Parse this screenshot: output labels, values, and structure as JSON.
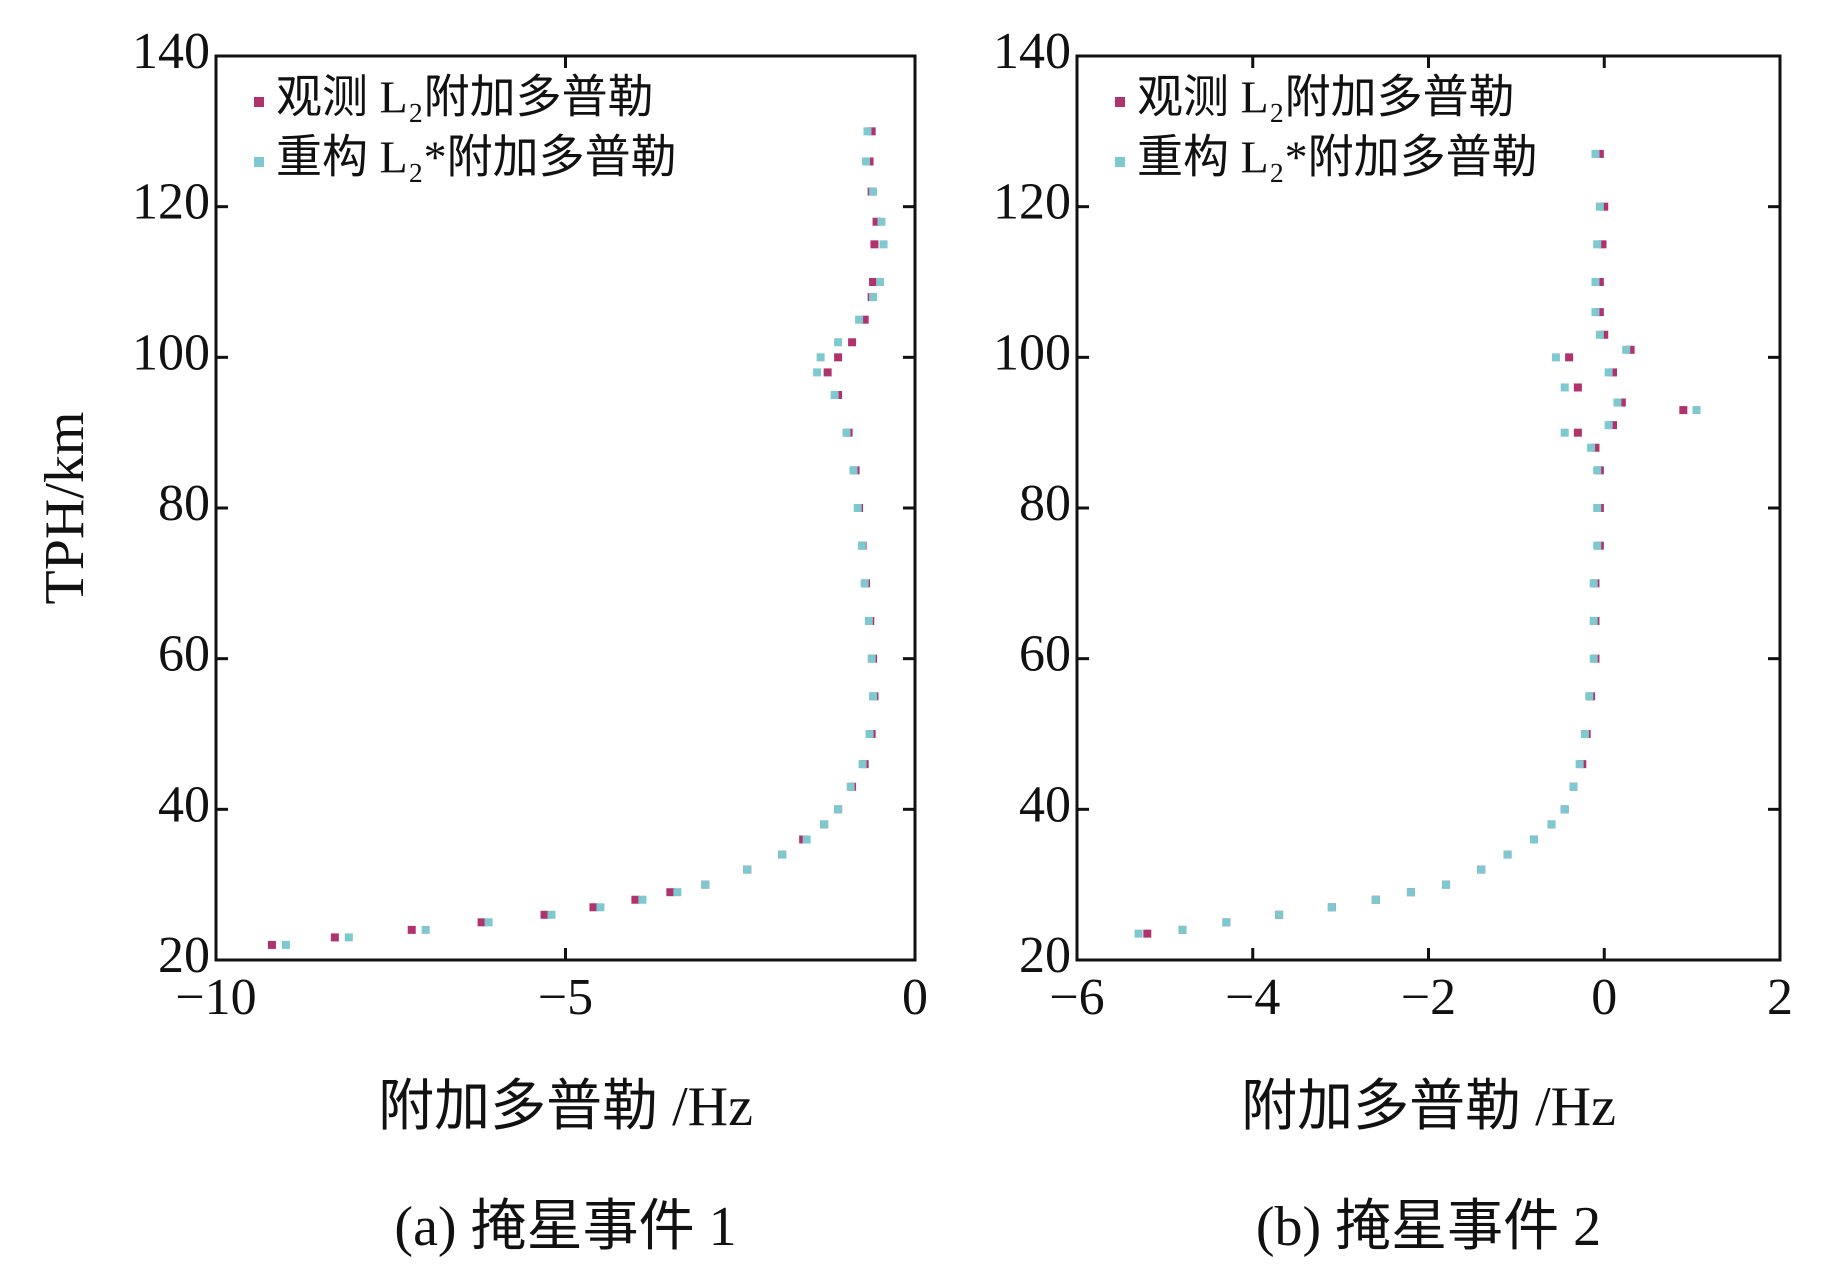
{
  "chart_data": [
    {
      "type": "scatter",
      "subtitle": "(a) 掩星事件 1",
      "xlabel": "附加多普勒 /Hz",
      "ylabel": "TPH/km",
      "xlim": [
        -10,
        0
      ],
      "ylim": [
        20,
        140
      ],
      "xticks": [
        {
          "value": -10,
          "label": "−10"
        },
        {
          "value": -5,
          "label": "−5"
        },
        0
      ],
      "yticks": [
        20,
        40,
        60,
        80,
        100,
        120,
        140
      ],
      "legend": "upper left",
      "series": [
        {
          "name": "观测 L₂附加多普勒",
          "color": "#b0336e",
          "x": [
            -9.2,
            -8.3,
            -7.2,
            -6.2,
            -5.3,
            -4.6,
            -4.0,
            -3.5,
            -3.0,
            -2.4,
            -1.9,
            -1.6,
            -1.3,
            -1.1,
            -0.9,
            -0.72,
            -0.62,
            -0.58,
            -0.6,
            -0.64,
            -0.7,
            -0.75,
            -0.8,
            -0.85,
            -0.95,
            -1.1,
            -1.25,
            -1.1,
            -0.9,
            -0.72,
            -0.62,
            -0.6,
            -0.58,
            -0.55,
            -0.62,
            -0.65,
            -0.62
          ],
          "values": [
            22,
            23,
            24,
            25,
            26,
            27,
            28,
            29,
            30,
            32,
            34,
            36,
            38,
            40,
            43,
            46,
            50,
            55,
            60,
            65,
            70,
            75,
            80,
            85,
            90,
            95,
            98,
            100,
            102,
            105,
            108,
            110,
            115,
            118,
            122,
            126,
            130
          ]
        },
        {
          "name": "重构 L₂*附加多普勒",
          "color": "#7ec8d0",
          "x": [
            -9.0,
            -8.1,
            -7.0,
            -6.1,
            -5.2,
            -4.5,
            -3.9,
            -3.4,
            -3.0,
            -2.4,
            -1.9,
            -1.55,
            -1.3,
            -1.1,
            -0.92,
            -0.75,
            -0.65,
            -0.6,
            -0.62,
            -0.66,
            -0.72,
            -0.76,
            -0.82,
            -0.88,
            -0.98,
            -1.15,
            -1.4,
            -1.35,
            -1.1,
            -0.8,
            -0.6,
            -0.5,
            -0.45,
            -0.48,
            -0.6,
            -0.7,
            -0.68
          ],
          "values": [
            22,
            23,
            24,
            25,
            26,
            27,
            28,
            29,
            30,
            32,
            34,
            36,
            38,
            40,
            43,
            46,
            50,
            55,
            60,
            65,
            70,
            75,
            80,
            85,
            90,
            95,
            98,
            100,
            102,
            105,
            108,
            110,
            115,
            118,
            122,
            126,
            130
          ]
        }
      ]
    },
    {
      "type": "scatter",
      "subtitle": "(b) 掩星事件 2",
      "xlabel": "附加多普勒 /Hz",
      "xlim": [
        -6,
        2
      ],
      "ylim": [
        20,
        140
      ],
      "xticks": [
        {
          "value": -6,
          "label": "−6"
        },
        {
          "value": -4,
          "label": "−4"
        },
        {
          "value": -2,
          "label": "−2"
        },
        0,
        2
      ],
      "yticks": [
        20,
        40,
        60,
        80,
        100,
        120,
        140
      ],
      "legend": "upper left",
      "series": [
        {
          "name": "观测 L₂附加多普勒",
          "color": "#b0336e",
          "x": [
            -5.2,
            -4.8,
            -4.3,
            -3.7,
            -3.1,
            -2.6,
            -2.2,
            -1.8,
            -1.4,
            -1.1,
            -0.8,
            -0.6,
            -0.45,
            -0.35,
            -0.25,
            -0.2,
            -0.15,
            -0.1,
            -0.1,
            -0.1,
            -0.05,
            -0.05,
            -0.05,
            -0.1,
            -0.3,
            0.1,
            0.9,
            0.2,
            -0.3,
            0.1,
            -0.4,
            0.3,
            0.0,
            -0.05,
            -0.05,
            -0.02,
            0.0,
            -0.05
          ],
          "values": [
            23.5,
            24,
            25,
            26,
            27,
            28,
            29,
            30,
            32,
            34,
            36,
            38,
            40,
            43,
            46,
            50,
            55,
            60,
            65,
            70,
            75,
            80,
            85,
            88,
            90,
            91,
            93,
            94,
            96,
            98,
            100,
            101,
            103,
            106,
            110,
            115,
            120,
            127
          ]
        },
        {
          "name": "重构 L₂*附加多普勒",
          "color": "#7ec8d0",
          "x": [
            -5.3,
            -4.8,
            -4.3,
            -3.7,
            -3.1,
            -2.6,
            -2.2,
            -1.8,
            -1.4,
            -1.1,
            -0.8,
            -0.6,
            -0.45,
            -0.35,
            -0.28,
            -0.22,
            -0.17,
            -0.12,
            -0.12,
            -0.12,
            -0.08,
            -0.08,
            -0.08,
            -0.15,
            -0.45,
            0.05,
            1.05,
            0.15,
            -0.45,
            0.05,
            -0.55,
            0.25,
            -0.05,
            -0.1,
            -0.1,
            -0.08,
            -0.05,
            -0.1
          ],
          "values": [
            23.5,
            24,
            25,
            26,
            27,
            28,
            29,
            30,
            32,
            34,
            36,
            38,
            40,
            43,
            46,
            50,
            55,
            60,
            65,
            70,
            75,
            80,
            85,
            88,
            90,
            91,
            93,
            94,
            96,
            98,
            100,
            101,
            103,
            106,
            110,
            115,
            120,
            127
          ]
        }
      ]
    }
  ]
}
